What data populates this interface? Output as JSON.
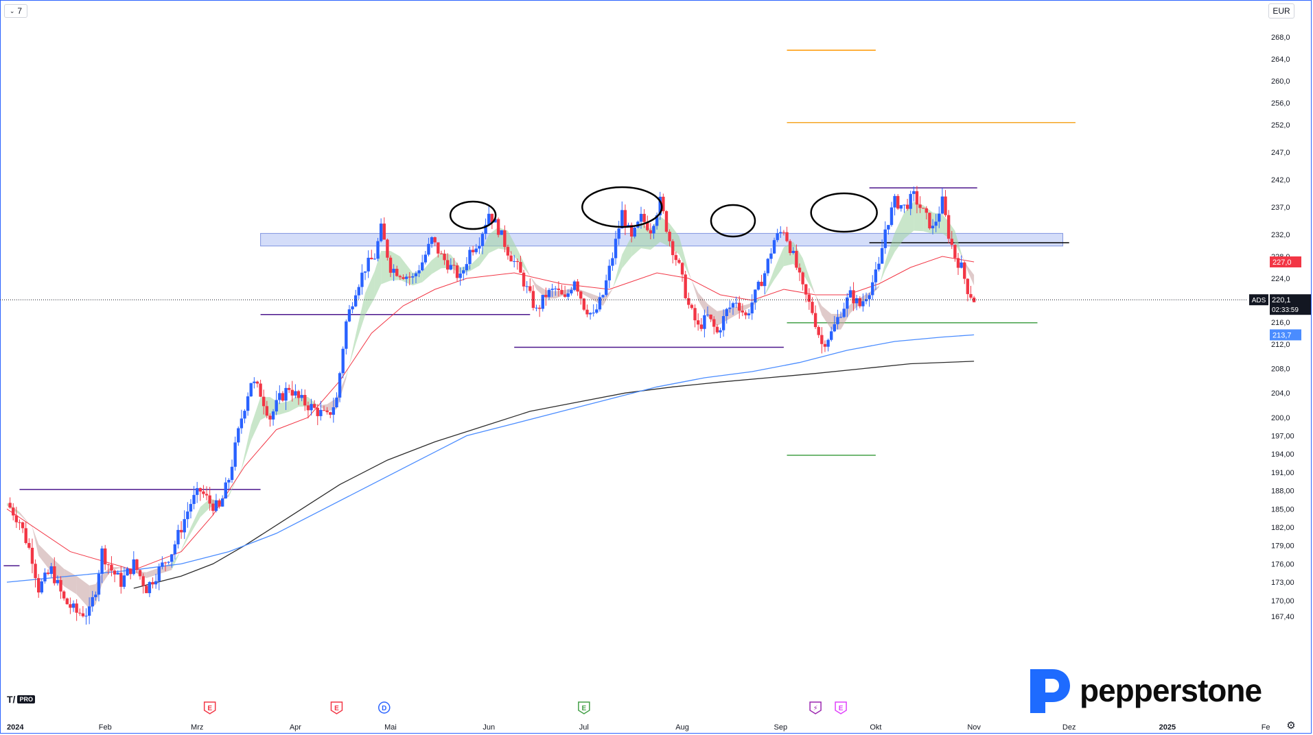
{
  "toolbar": {
    "interval_label": "7",
    "currency_label": "EUR",
    "chevron_icon": "chevron-down-icon"
  },
  "brand": {
    "name": "pepperstone",
    "logo_icon": "pepperstone-p-logo",
    "platform_badge": "PRO"
  },
  "settings_icon": "gear-icon",
  "colors": {
    "up": "#2962ff",
    "down": "#f23645",
    "ema_fast": "#f23645",
    "ma_blue": "#4a8cff",
    "ma_black": "#2b2b2b",
    "cloud_green": "#a5d6a7",
    "cloud_red": "#c9a7a7",
    "zone": "#9fb4f2",
    "purple": "#4a148c",
    "orange": "#ff9800",
    "amber": "#f5a623",
    "green": "#43a047"
  },
  "chart_data": {
    "type": "candlestick",
    "symbol": "ADS",
    "currency": "EUR",
    "price_axis_labels": [
      "268,0",
      "264,0",
      "260,0",
      "256,0",
      "252,0",
      "247,0",
      "242,0",
      "237,0",
      "232,0",
      "228,0",
      "224,0",
      "220,0",
      "216,0",
      "212,0",
      "208,0",
      "204,0",
      "200,0",
      "197,00",
      "194,00",
      "191,00",
      "188,00",
      "185,00",
      "182,00",
      "179,00",
      "176,00",
      "173,00",
      "170,00",
      "167,40"
    ],
    "price_axis_values": [
      268,
      264,
      260,
      256,
      252,
      247,
      242,
      237,
      232,
      228,
      224,
      220,
      216,
      212,
      208,
      204,
      200,
      197,
      194,
      191,
      188,
      185,
      182,
      179,
      176,
      173,
      170,
      167.4
    ],
    "time_axis": [
      {
        "label": "2024",
        "day": 0
      },
      {
        "label": "Feb",
        "day": 31
      },
      {
        "label": "Mrz",
        "day": 60
      },
      {
        "label": "Apr",
        "day": 91
      },
      {
        "label": "Mai",
        "day": 121
      },
      {
        "label": "Jun",
        "day": 152
      },
      {
        "label": "Jul",
        "day": 182
      },
      {
        "label": "Aug",
        "day": 213
      },
      {
        "label": "Sep",
        "day": 244
      },
      {
        "label": "Okt",
        "day": 274
      },
      {
        "label": "Nov",
        "day": 305
      },
      {
        "label": "Dez",
        "day": 335
      },
      {
        "label": "2025",
        "day": 366
      },
      {
        "label": "Fe",
        "day": 397
      }
    ],
    "ylim": [
      166.5,
      271
    ],
    "xlim_days": [
      -1,
      404
    ],
    "last_price": {
      "label": "ADS",
      "value": 220.1,
      "value_label": "220,1",
      "countdown": "02:33:59"
    },
    "price_tags": [
      {
        "value": 227.0,
        "label": "227,0",
        "color": "#f23645"
      },
      {
        "value": 213.7,
        "label": "213,7",
        "color": "#4a8cff"
      }
    ],
    "candles_anchor": [
      [
        0,
        186
      ],
      [
        4,
        183
      ],
      [
        8,
        177
      ],
      [
        10,
        172
      ],
      [
        14,
        175
      ],
      [
        18,
        170
      ],
      [
        22,
        168
      ],
      [
        26,
        168
      ],
      [
        28,
        172
      ],
      [
        30,
        178
      ],
      [
        33,
        175
      ],
      [
        36,
        173
      ],
      [
        40,
        176
      ],
      [
        44,
        172
      ],
      [
        48,
        175
      ],
      [
        52,
        178
      ],
      [
        55,
        182
      ],
      [
        58,
        186
      ],
      [
        61,
        188
      ],
      [
        64,
        186
      ],
      [
        67,
        185
      ],
      [
        70,
        190
      ],
      [
        74,
        200
      ],
      [
        77,
        206
      ],
      [
        80,
        204
      ],
      [
        83,
        200
      ],
      [
        86,
        203
      ],
      [
        89,
        205
      ],
      [
        92,
        203
      ],
      [
        95,
        202
      ],
      [
        98,
        201
      ],
      [
        101,
        200
      ],
      [
        104,
        203
      ],
      [
        107,
        216
      ],
      [
        110,
        222
      ],
      [
        113,
        226
      ],
      [
        116,
        228
      ],
      [
        118,
        233
      ],
      [
        121,
        226
      ],
      [
        124,
        225
      ],
      [
        128,
        224
      ],
      [
        131,
        227
      ],
      [
        134,
        231
      ],
      [
        137,
        228
      ],
      [
        140,
        226
      ],
      [
        143,
        224
      ],
      [
        146,
        229
      ],
      [
        149,
        231
      ],
      [
        152,
        236
      ],
      [
        155,
        233
      ],
      [
        158,
        229
      ],
      [
        161,
        226
      ],
      [
        164,
        222
      ],
      [
        167,
        218
      ],
      [
        170,
        221
      ],
      [
        173,
        222
      ],
      [
        176,
        220
      ],
      [
        179,
        224
      ],
      [
        182,
        219
      ],
      [
        185,
        217
      ],
      [
        188,
        221
      ],
      [
        191,
        228
      ],
      [
        194,
        236
      ],
      [
        197,
        231
      ],
      [
        200,
        235
      ],
      [
        203,
        233
      ],
      [
        206,
        238
      ],
      [
        209,
        231
      ],
      [
        212,
        226
      ],
      [
        215,
        219
      ],
      [
        218,
        215
      ],
      [
        221,
        217
      ],
      [
        224,
        214
      ],
      [
        227,
        218
      ],
      [
        230,
        220
      ],
      [
        233,
        217
      ],
      [
        236,
        221
      ],
      [
        239,
        225
      ],
      [
        242,
        231
      ],
      [
        245,
        233
      ],
      [
        248,
        228
      ],
      [
        251,
        222
      ],
      [
        254,
        218
      ],
      [
        257,
        212
      ],
      [
        260,
        214
      ],
      [
        263,
        218
      ],
      [
        266,
        221
      ],
      [
        269,
        219
      ],
      [
        272,
        222
      ],
      [
        275,
        226
      ],
      [
        277,
        233
      ],
      [
        280,
        238
      ],
      [
        283,
        237
      ],
      [
        286,
        239
      ],
      [
        289,
        236
      ],
      [
        292,
        233
      ],
      [
        295,
        238
      ],
      [
        297,
        232
      ],
      [
        299,
        228
      ],
      [
        301,
        226
      ],
      [
        303,
        222
      ],
      [
        305,
        220.1
      ]
    ],
    "ema_fast": [
      [
        0,
        185
      ],
      [
        20,
        178
      ],
      [
        40,
        175
      ],
      [
        55,
        178
      ],
      [
        65,
        184
      ],
      [
        75,
        192
      ],
      [
        85,
        198
      ],
      [
        95,
        200
      ],
      [
        105,
        206
      ],
      [
        115,
        214
      ],
      [
        125,
        219
      ],
      [
        135,
        222
      ],
      [
        145,
        224
      ],
      [
        160,
        225
      ],
      [
        175,
        223
      ],
      [
        190,
        222
      ],
      [
        205,
        225
      ],
      [
        215,
        224
      ],
      [
        225,
        221
      ],
      [
        235,
        220
      ],
      [
        245,
        222
      ],
      [
        255,
        221
      ],
      [
        265,
        221
      ],
      [
        275,
        223
      ],
      [
        285,
        226
      ],
      [
        295,
        228
      ],
      [
        305,
        227
      ]
    ],
    "ma_blue": [
      [
        0,
        173
      ],
      [
        20,
        174
      ],
      [
        40,
        175
      ],
      [
        55,
        176
      ],
      [
        70,
        178
      ],
      [
        85,
        181
      ],
      [
        100,
        185
      ],
      [
        115,
        189
      ],
      [
        130,
        193
      ],
      [
        145,
        197
      ],
      [
        160,
        199
      ],
      [
        175,
        201
      ],
      [
        190,
        203
      ],
      [
        205,
        205
      ],
      [
        220,
        206.5
      ],
      [
        235,
        207.5
      ],
      [
        250,
        209
      ],
      [
        265,
        211
      ],
      [
        280,
        212.5
      ],
      [
        295,
        213.3
      ],
      [
        305,
        213.7
      ]
    ],
    "ma_black": [
      [
        40,
        172
      ],
      [
        55,
        174
      ],
      [
        65,
        176
      ],
      [
        75,
        179
      ],
      [
        90,
        184
      ],
      [
        105,
        189
      ],
      [
        120,
        193
      ],
      [
        135,
        196
      ],
      [
        150,
        198.5
      ],
      [
        165,
        201
      ],
      [
        180,
        202.5
      ],
      [
        195,
        204
      ],
      [
        210,
        205
      ],
      [
        225,
        205.8
      ],
      [
        240,
        206.5
      ],
      [
        255,
        207.2
      ],
      [
        270,
        208
      ],
      [
        285,
        208.8
      ],
      [
        305,
        209.2
      ]
    ],
    "horizontal_levels": [
      {
        "type": "zone",
        "from": 230.5,
        "to": 231.6,
        "d1": 80,
        "d2": 333
      },
      {
        "type": "line",
        "value": 230.5,
        "d1": 272,
        "d2": 335,
        "color": "#000000"
      },
      {
        "type": "line",
        "value": 240.5,
        "d1": 272,
        "d2": 306,
        "color": "#4a148c"
      },
      {
        "type": "line",
        "value": 211.5,
        "d1": 160,
        "d2": 245,
        "color": "#4a148c"
      },
      {
        "type": "line",
        "value": 217.4,
        "d1": 80,
        "d2": 165,
        "color": "#4a148c"
      },
      {
        "type": "line",
        "value": 188.2,
        "d1": 4,
        "d2": 80,
        "color": "#4a148c"
      },
      {
        "type": "line",
        "value": 175.7,
        "d1": -1,
        "d2": 4,
        "color": "#4a148c"
      },
      {
        "type": "line",
        "value": 265.6,
        "d1": 246,
        "d2": 274,
        "color": "#ff9800"
      },
      {
        "type": "line",
        "value": 252.4,
        "d1": 246,
        "d2": 337,
        "color": "#f5a623"
      },
      {
        "type": "line",
        "value": 215.9,
        "d1": 246,
        "d2": 325,
        "color": "#43a047"
      },
      {
        "type": "line",
        "value": 193.8,
        "d1": 246,
        "d2": 274,
        "color": "#43a047"
      }
    ],
    "annotations": [
      {
        "type": "ellipse",
        "day": 147,
        "value": 235.5
      },
      {
        "type": "ellipse",
        "day": 194,
        "value": 237
      },
      {
        "type": "ellipse",
        "day": 229,
        "value": 234.5
      },
      {
        "type": "ellipse",
        "day": 264,
        "value": 236
      }
    ],
    "event_markers": [
      {
        "day": 64,
        "label": "E",
        "kind": "earnings",
        "color": "#f23645"
      },
      {
        "day": 104,
        "label": "E",
        "kind": "earnings",
        "color": "#f23645"
      },
      {
        "day": 119,
        "label": "D",
        "kind": "dividend",
        "color": "#2962ff"
      },
      {
        "day": 182,
        "label": "E",
        "kind": "earnings",
        "color": "#43a047"
      },
      {
        "day": 255,
        "label": "⚡",
        "kind": "split",
        "color": "#9c27b0"
      },
      {
        "day": 263,
        "label": "E",
        "kind": "earnings",
        "color": "#e040fb"
      }
    ],
    "grid": false
  }
}
